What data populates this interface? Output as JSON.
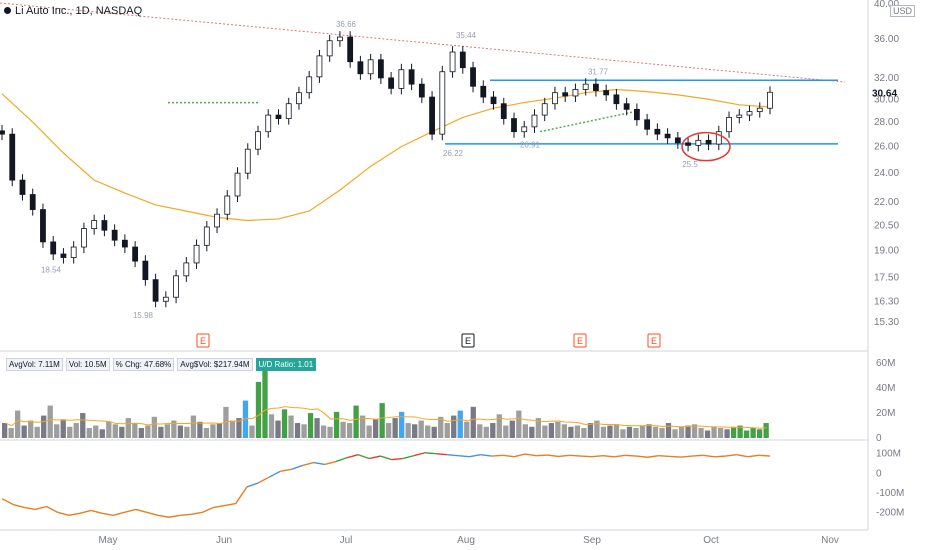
{
  "header": {
    "title": "Li Auto Inc., 1D, NASDAQ",
    "currency": "USD"
  },
  "volume_badges": [
    {
      "label": "AvgVol: 7.11M",
      "highlight": false
    },
    {
      "label": "Vol: 10.5M",
      "highlight": false
    },
    {
      "label": "% Chg: 47.68%",
      "highlight": false
    },
    {
      "label": "Avg$Vol: $217.94M",
      "highlight": false
    },
    {
      "label": "U/D Ratio: 1.01",
      "highlight": true
    }
  ],
  "colors": {
    "up": "#131722",
    "down": "#131722",
    "ma": "#f5a623",
    "channel": "#2196f3",
    "trend_red": "#e57373",
    "trend_green": "#4caf50",
    "vol_gray": "#9e9e9e",
    "vol_dark": "#787b86",
    "vol_green": "#43a047",
    "vol_blue": "#42a5f5",
    "rs_line": "#e67e22",
    "circle": "#e53935"
  },
  "chart_data": [
    {
      "type": "candlestick",
      "title": "Li Auto Inc., 1D, NASDAQ",
      "ylim": [
        14.5,
        40
      ],
      "yscale": "log",
      "y_ticks": [
        15.3,
        16.3,
        17.5,
        19.0,
        20.5,
        22.0,
        24.0,
        26.0,
        28.0,
        30.0,
        32.0,
        36.0,
        40.0
      ],
      "last_price": 30.64,
      "x_labels": [
        "May",
        "Jun",
        "Jul",
        "Aug",
        "Sep",
        "Oct",
        "Nov"
      ],
      "price_labels": [
        {
          "text": "18.54",
          "value": 18.54
        },
        {
          "text": "15.98",
          "value": 15.98
        },
        {
          "text": "36.66",
          "value": 36.66
        },
        {
          "text": "35.44",
          "value": 35.44
        },
        {
          "text": "26.22",
          "value": 26.22
        },
        {
          "text": "26.91",
          "value": 26.91
        },
        {
          "text": "31.77",
          "value": 31.77
        },
        {
          "text": "25.5",
          "value": 25.5
        }
      ],
      "earnings_markers": [
        {
          "label": "E"
        },
        {
          "label": "E"
        },
        {
          "label": "E"
        },
        {
          "label": "E"
        }
      ],
      "channel_levels": [
        31.77,
        26.22
      ],
      "close_path": [
        27,
        23.5,
        22.5,
        21.5,
        19.5,
        18.8,
        18.6,
        19.2,
        20.3,
        20.8,
        20.2,
        19.6,
        19.2,
        18.4,
        17.4,
        16.3,
        16.5,
        17.6,
        18.3,
        19.3,
        20.4,
        21.2,
        22.4,
        24.0,
        25.8,
        27.2,
        28.6,
        28.3,
        29.6,
        30.6,
        32.1,
        34.2,
        35.8,
        36.2,
        33.6,
        32.4,
        33.8,
        32.0,
        31.0,
        32.8,
        31.4,
        30.2,
        27.0,
        32.6,
        34.6,
        33.0,
        31.2,
        30.2,
        29.6,
        28.3,
        27.2,
        27.6,
        28.6,
        29.6,
        30.6,
        30.3,
        30.9,
        31.4,
        30.8,
        30.4,
        29.6,
        29.1,
        28.2,
        27.4,
        27.0,
        26.7,
        26.3,
        26.1,
        26.5,
        26.2,
        27.2,
        28.4,
        28.6,
        28.9,
        29.2,
        30.64
      ],
      "ma_path": [
        30.5,
        28.0,
        25.5,
        23.5,
        22.6,
        21.8,
        21.4,
        21.0,
        20.8,
        20.9,
        21.4,
        22.8,
        24.5,
        26.0,
        27.2,
        28.4,
        29.2,
        29.7,
        30.1,
        30.6,
        30.9,
        30.7,
        30.4,
        30.0,
        29.5,
        29.3
      ],
      "volume_ylim": [
        0,
        65
      ],
      "volume_ticks": [
        "60M",
        "40M",
        "20M",
        "0"
      ],
      "volume_values_M": [
        12,
        8,
        22,
        10,
        14,
        9,
        18,
        26,
        11,
        15,
        9,
        12,
        20,
        8,
        10,
        7,
        13,
        11,
        9,
        16,
        12,
        8,
        10,
        17,
        9,
        11,
        14,
        10,
        9,
        18,
        13,
        8,
        11,
        12,
        25,
        14,
        16,
        30,
        10,
        45,
        56,
        19,
        14,
        23,
        18,
        12,
        11,
        20,
        16,
        10,
        9,
        21,
        13,
        12,
        26,
        18,
        10,
        15,
        28,
        12,
        16,
        21,
        12,
        11,
        14,
        10,
        9,
        17,
        12,
        18,
        22,
        13,
        25,
        11,
        9,
        12,
        19,
        10,
        14,
        22,
        11,
        9,
        16,
        10,
        12,
        13,
        11,
        9,
        10,
        8,
        12,
        14,
        9,
        10,
        11,
        7,
        9,
        8,
        10,
        11,
        9,
        8,
        12,
        7,
        9,
        10,
        11,
        8,
        6,
        9,
        8,
        7,
        9,
        10,
        6,
        8,
        7,
        12
      ],
      "rs_ylim": [
        -280,
        160
      ],
      "rs_ticks": [
        "100M",
        "0",
        "-100M",
        "-200M"
      ],
      "rs_path": [
        -130,
        -160,
        -175,
        -185,
        -170,
        -200,
        -215,
        -205,
        -190,
        -205,
        -215,
        -200,
        -185,
        -200,
        -215,
        -225,
        -215,
        -210,
        -200,
        -175,
        -165,
        -155,
        -70,
        -50,
        -20,
        10,
        20,
        40,
        55,
        45,
        60,
        80,
        95,
        75,
        88,
        70,
        75,
        90,
        105,
        100,
        95,
        90,
        85,
        95,
        88,
        92,
        85,
        98,
        90,
        93,
        86,
        92,
        88,
        85,
        90,
        84,
        92,
        88,
        82,
        90,
        86,
        83,
        88,
        92,
        84,
        88,
        95,
        85,
        92,
        88
      ]
    }
  ]
}
